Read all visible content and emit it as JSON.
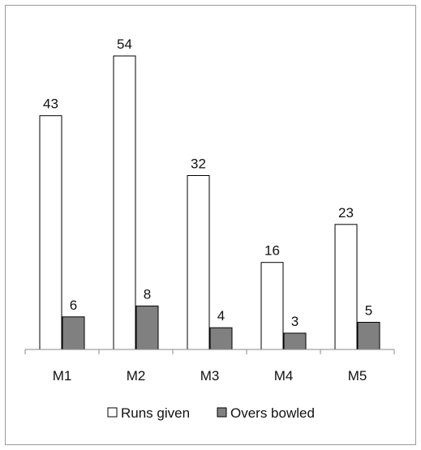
{
  "chart_data": {
    "type": "bar",
    "categories": [
      "M1",
      "M2",
      "M3",
      "M4",
      "M5"
    ],
    "series": [
      {
        "name": "Runs given",
        "values": [
          43,
          54,
          32,
          16,
          23
        ],
        "color": "#ffffff",
        "stroke": "#000000"
      },
      {
        "name": "Overs bowled",
        "values": [
          6,
          8,
          4,
          3,
          5
        ],
        "color": "#808080",
        "stroke": "#000000"
      }
    ],
    "title": "",
    "xlabel": "",
    "ylabel": "",
    "ylim": [
      0,
      54
    ],
    "grid": false,
    "legend": "bottom",
    "data_labels": true
  }
}
